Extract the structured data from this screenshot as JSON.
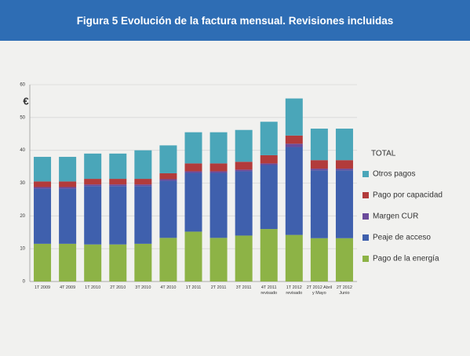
{
  "chart_data": {
    "type": "stacked-bar",
    "title": "Figura 5 Evolución de la factura mensual. Revisiones incluidas",
    "y_label": "€",
    "legend_title": "TOTAL",
    "categories": [
      "1T 2009",
      "4T 2009",
      "1T 2010",
      "2T 2010",
      "3T 2010",
      "4T 2010",
      "1T 2011",
      "2T 2011",
      "3T 2011",
      "4T 2011 revisado",
      "1T 2012 revisado",
      "2T 2012 Abril y Mayo",
      "2T 2012 Junio"
    ],
    "series": [
      {
        "name": "Pago de la energía",
        "color": "#8db346",
        "values": [
          11.5,
          11.5,
          11.3,
          11.3,
          11.5,
          13.3,
          15.2,
          13.3,
          14.0,
          16.0,
          14.2,
          13.2,
          13.2
        ]
      },
      {
        "name": "Peaje de acceso",
        "color": "#3f60ad",
        "values": [
          16.8,
          16.8,
          17.8,
          17.8,
          17.6,
          17.4,
          17.9,
          19.8,
          19.6,
          19.5,
          26.8,
          20.7,
          20.7
        ]
      },
      {
        "name": "Margen CUR",
        "color": "#6b4b9b",
        "values": [
          0.5,
          0.5,
          0.5,
          0.5,
          0.5,
          0.5,
          0.5,
          0.5,
          0.5,
          0.5,
          1.0,
          0.5,
          0.5
        ]
      },
      {
        "name": "Pago por capacidad",
        "color": "#b23b3b",
        "values": [
          1.7,
          1.7,
          1.7,
          1.7,
          1.7,
          1.8,
          2.4,
          2.4,
          2.4,
          2.5,
          2.5,
          2.6,
          2.6
        ]
      },
      {
        "name": "Otros pagos",
        "color": "#4aa6b9",
        "values": [
          7.5,
          7.5,
          7.7,
          7.7,
          8.7,
          8.5,
          9.5,
          9.5,
          9.7,
          10.2,
          11.3,
          9.6,
          9.6
        ]
      }
    ],
    "ylim": [
      0,
      60
    ],
    "yticks": [
      0,
      10,
      20,
      30,
      40,
      50,
      60
    ],
    "grid": true
  }
}
